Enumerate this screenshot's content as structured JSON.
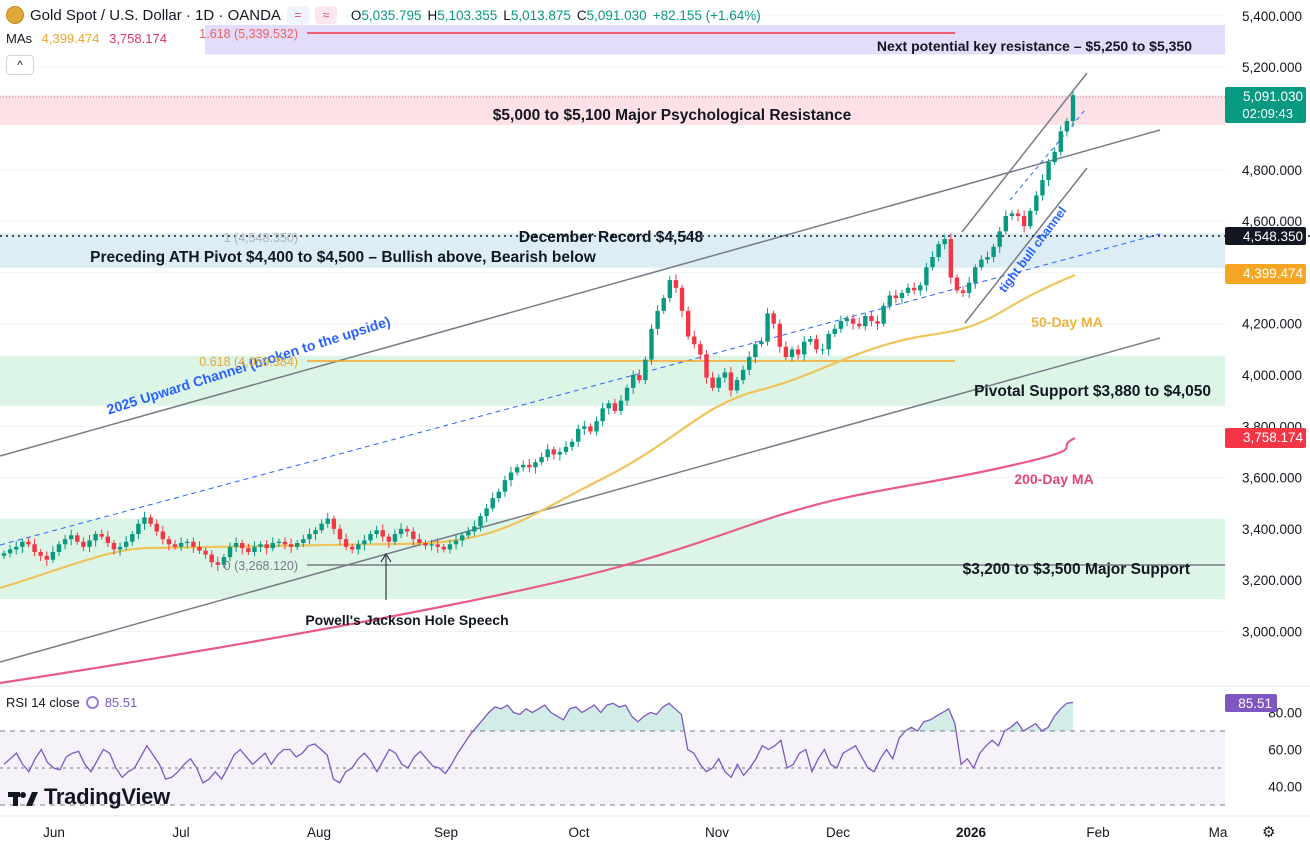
{
  "header": {
    "symbol": "Gold Spot / U.S. Dollar · 1D · OANDA",
    "o_label": "O",
    "o_value": "5,035.795",
    "h_label": "H",
    "h_value": "5,103.355",
    "l_label": "L",
    "l_value": "5,013.875",
    "c_label": "C",
    "c_value": "5,091.030",
    "change": "+82.155 (+1.64%)",
    "mas_label": "MAs",
    "ma50_value": "4,399.474",
    "ma200_value": "3,758.174",
    "collapse_glyph": "^"
  },
  "rsi_header": {
    "label": "RSI 14 close",
    "value": "85.51"
  },
  "branding": {
    "name": "TradingView"
  },
  "chart_data": {
    "type": "candlestick",
    "y_axis": {
      "ticks": [
        "5,400.000",
        "5,200.000",
        "4,800.000",
        "4,600.000",
        "4,200.000",
        "4,000.000",
        "3,800.000",
        "3,600.000",
        "3,400.000",
        "3,200.000",
        "3,000.000"
      ],
      "tick_values": [
        5400,
        5200,
        4800,
        4600,
        4200,
        4000,
        3800,
        3600,
        3400,
        3200,
        3000
      ],
      "ylim": [
        2930,
        5430
      ]
    },
    "x_axis": {
      "labels": [
        "Jun",
        "Jul",
        "Aug",
        "Sep",
        "Oct",
        "Nov",
        "Dec",
        "2026",
        "Feb",
        "Ma"
      ],
      "bold": [
        "2026"
      ]
    },
    "price_markers": [
      {
        "label": "5,091.030",
        "sub": "02:09:43",
        "value": 5091.03,
        "color": "#089981"
      },
      {
        "label": "4,548.350",
        "value": 4548.35,
        "color": "#131722"
      },
      {
        "label": "4,399.474",
        "value": 4399.474,
        "color": "#f5a623"
      },
      {
        "label": "3,758.174",
        "value": 3758.174,
        "color": "#f23645"
      }
    ],
    "zones": [
      {
        "label": "Next potential key resistance – $5,250 to $5,350",
        "from": 5250,
        "to": 5365,
        "color": "#e4dcfb"
      },
      {
        "label": "$5,000 to $5,100 Major Psychological Resistance",
        "from": 4975,
        "to": 5090,
        "color": "#fde1e6"
      },
      {
        "label": "Preceding ATH Pivot $4,400 to $4,500 – Bullish above, Bearish below",
        "from": 4418,
        "to": 4553,
        "color": "#dcedf5"
      },
      {
        "label": "Pivotal Support $3,880 to $4,050",
        "from": 3880,
        "to": 4075,
        "color": "#dcf5e7"
      },
      {
        "label": "$3,200 to $3,500 Major Support",
        "from": 3127,
        "to": 3440,
        "color": "#dcf5e7"
      }
    ],
    "annotations": [
      {
        "text": "December Record $4,548",
        "value": 4548
      },
      {
        "text": "50-Day MA",
        "value": 4210
      },
      {
        "text": "200-Day MA",
        "value": 3595
      },
      {
        "text": "2025 Upward Channel (broken to the upside)"
      },
      {
        "text": "tight bull channel"
      },
      {
        "text": "Powell's Jackson Hole Speech"
      }
    ],
    "fib_labels": [
      {
        "text": "1.618 (5,339.532)",
        "value": 5339.532
      },
      {
        "text": "1 (4,548.350)",
        "value": 4548.35
      },
      {
        "text": "0.618 (4,059.384)",
        "value": 4059.384
      },
      {
        "text": "0 (3,268.120)",
        "value": 3268.12
      }
    ],
    "close_series": [
      3305,
      3320,
      3330,
      3350,
      3340,
      3310,
      3295,
      3280,
      3310,
      3340,
      3360,
      3375,
      3350,
      3330,
      3355,
      3380,
      3370,
      3345,
      3320,
      3330,
      3350,
      3380,
      3420,
      3445,
      3420,
      3390,
      3360,
      3340,
      3330,
      3345,
      3350,
      3330,
      3315,
      3300,
      3270,
      3260,
      3290,
      3330,
      3345,
      3325,
      3310,
      3330,
      3340,
      3325,
      3345,
      3350,
      3340,
      3330,
      3345,
      3360,
      3380,
      3395,
      3420,
      3440,
      3400,
      3360,
      3330,
      3320,
      3340,
      3355,
      3380,
      3395,
      3370,
      3350,
      3380,
      3400,
      3390,
      3360,
      3345,
      3335,
      3340,
      3330,
      3320,
      3340,
      3355,
      3375,
      3390,
      3410,
      3450,
      3480,
      3520,
      3545,
      3590,
      3620,
      3640,
      3650,
      3640,
      3660,
      3680,
      3710,
      3690,
      3700,
      3720,
      3740,
      3790,
      3800,
      3780,
      3820,
      3870,
      3890,
      3860,
      3900,
      3950,
      4000,
      3980,
      4060,
      4180,
      4250,
      4300,
      4370,
      4340,
      4250,
      4150,
      4120,
      4080,
      3990,
      3950,
      3990,
      4010,
      3940,
      3980,
      4020,
      4070,
      4120,
      4130,
      4240,
      4200,
      4110,
      4070,
      4100,
      4080,
      4130,
      4140,
      4100,
      4100,
      4160,
      4180,
      4210,
      4220,
      4200,
      4190,
      4230,
      4210,
      4200,
      4270,
      4310,
      4300,
      4320,
      4340,
      4330,
      4350,
      4420,
      4460,
      4510,
      4530,
      4380,
      4330,
      4320,
      4360,
      4420,
      4450,
      4460,
      4500,
      4560,
      4620,
      4630,
      4620,
      4580,
      4640,
      4700,
      4760,
      4830,
      4870,
      4950,
      4990,
      5091
    ],
    "rsi": {
      "levels": [
        70,
        50,
        30
      ],
      "ticks": [
        "80.00",
        "60.00",
        "40.00"
      ],
      "current": 85.51,
      "series": [
        52,
        55,
        58,
        52,
        48,
        55,
        60,
        53,
        50,
        49,
        56,
        58,
        59,
        52,
        48,
        54,
        60,
        58,
        50,
        45,
        48,
        50,
        56,
        62,
        57,
        52,
        44,
        45,
        48,
        52,
        55,
        50,
        42,
        44,
        48,
        44,
        50,
        57,
        60,
        56,
        52,
        55,
        58,
        52,
        57,
        60,
        60,
        56,
        58,
        62,
        63,
        60,
        57,
        44,
        42,
        48,
        50,
        55,
        58,
        54,
        48,
        54,
        60,
        58,
        52,
        50,
        56,
        59,
        55,
        51,
        50,
        47,
        52,
        58,
        63,
        68,
        72,
        76,
        80,
        83,
        82,
        84,
        80,
        79,
        82,
        80,
        82,
        84,
        80,
        78,
        76,
        82,
        83,
        80,
        82,
        84,
        80,
        84,
        85,
        83,
        84,
        78,
        75,
        78,
        80,
        79,
        83,
        85,
        82,
        79,
        60,
        58,
        52,
        48,
        50,
        55,
        48,
        45,
        52,
        46,
        50,
        55,
        62,
        60,
        62,
        65,
        50,
        52,
        58,
        60,
        48,
        55,
        60,
        52,
        50,
        58,
        60,
        62,
        56,
        50,
        48,
        55,
        60,
        55,
        66,
        70,
        72,
        70,
        75,
        76,
        78,
        80,
        82,
        74,
        52,
        55,
        50,
        58,
        62,
        65,
        62,
        70,
        72,
        75,
        70,
        72,
        74,
        70,
        72,
        78,
        82,
        85,
        85.5
      ]
    }
  }
}
